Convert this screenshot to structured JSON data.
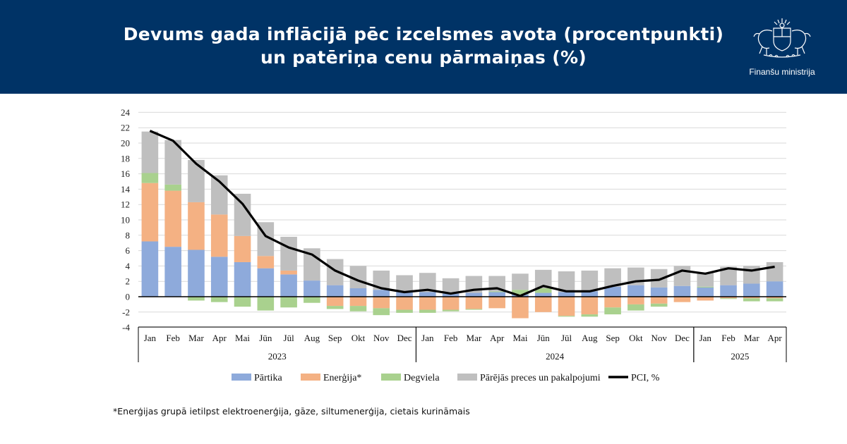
{
  "header": {
    "title_line1": "Devums gada inflācijā pēc izcelsmes avota (procentpunkti)",
    "title_line2": "un patēriņa cenu pārmaiņas (%)",
    "ministry": "Finanšu ministrija",
    "logo_icon": "coat-of-arms-icon"
  },
  "footnote": "*Enerģijas grupā ietilpst elektroenerģija, gāze, siltumenerģija, cietais kurināmais",
  "colors": {
    "header_bg": "#003366",
    "partika": "#8eaadb",
    "energija": "#f4b183",
    "degviela": "#a9d18e",
    "parejas": "#bfbfbf",
    "pci": "#000000"
  },
  "chart_data": {
    "type": "bar",
    "stacked": true,
    "categories": [
      "Jan",
      "Feb",
      "Mar",
      "Apr",
      "Mai",
      "Jūn",
      "Jūl",
      "Aug",
      "Sep",
      "Okt",
      "Nov",
      "Dec",
      "Jan",
      "Feb",
      "Mar",
      "Apr",
      "Mai",
      "Jūn",
      "Jūl",
      "Aug",
      "Sep",
      "Okt",
      "Nov",
      "Dec",
      "Jan",
      "Feb",
      "Mar",
      "Apr"
    ],
    "years": [
      {
        "label": "2023",
        "start": 0,
        "end": 11
      },
      {
        "label": "2024",
        "start": 12,
        "end": 23
      },
      {
        "label": "2025",
        "start": 24,
        "end": 27
      }
    ],
    "ylim": [
      -4,
      24
    ],
    "yticks": [
      -4,
      -2,
      0,
      2,
      4,
      6,
      8,
      10,
      12,
      14,
      16,
      18,
      20,
      22,
      24
    ],
    "grid": true,
    "legend_position": "bottom",
    "series": [
      {
        "name": "Pārtika",
        "color": "#8eaadb",
        "values": [
          7.2,
          6.5,
          6.1,
          5.2,
          4.5,
          3.7,
          2.9,
          2.1,
          1.5,
          1.1,
          0.9,
          0.6,
          0.6,
          0.4,
          0.5,
          0.6,
          0.3,
          0.5,
          0.6,
          0.7,
          1.3,
          1.5,
          1.2,
          1.4,
          1.2,
          1.5,
          1.7,
          2.0
        ]
      },
      {
        "name": "Enerģija*",
        "color": "#f4b183",
        "values": [
          7.6,
          7.3,
          6.2,
          5.5,
          3.4,
          1.6,
          0.5,
          0,
          -1.2,
          -1.2,
          -1.5,
          -1.7,
          -1.7,
          -1.7,
          -1.6,
          -1.5,
          -2.8,
          -2.0,
          -2.5,
          -2.3,
          -1.4,
          -1.0,
          -0.9,
          -0.7,
          -0.5,
          -0.2,
          -0.2,
          -0.2
        ]
      },
      {
        "name": "Degviela",
        "color": "#a9d18e",
        "values": [
          1.3,
          0.8,
          -0.5,
          -0.7,
          -1.3,
          -1.8,
          -1.4,
          -0.8,
          -0.4,
          -0.7,
          -0.9,
          -0.4,
          -0.4,
          -0.2,
          -0.1,
          0.1,
          0.6,
          0.6,
          -0.1,
          -0.3,
          -0.9,
          -0.8,
          -0.4,
          0,
          0.1,
          -0.1,
          -0.4,
          -0.4
        ]
      },
      {
        "name": "Pārējās preces un pakalpojumi",
        "color": "#bfbfbf",
        "values": [
          5.4,
          5.8,
          5.5,
          5.1,
          5.5,
          4.4,
          4.4,
          4.2,
          3.4,
          2.9,
          2.5,
          2.2,
          2.5,
          2.0,
          2.2,
          2.0,
          2.1,
          2.4,
          2.7,
          2.7,
          2.4,
          2.3,
          2.4,
          2.6,
          1.8,
          2.4,
          2.3,
          2.5
        ]
      }
    ],
    "line": {
      "name": "PCI, %",
      "color": "#000000",
      "values": [
        21.6,
        20.3,
        17.3,
        15.0,
        12.1,
        7.9,
        6.4,
        5.5,
        3.4,
        2.1,
        1.1,
        0.6,
        0.9,
        0.4,
        0.9,
        1.1,
        0.1,
        1.4,
        0.7,
        0.7,
        1.4,
        2.0,
        2.2,
        3.4,
        3.0,
        3.7,
        3.4,
        3.9
      ]
    }
  }
}
